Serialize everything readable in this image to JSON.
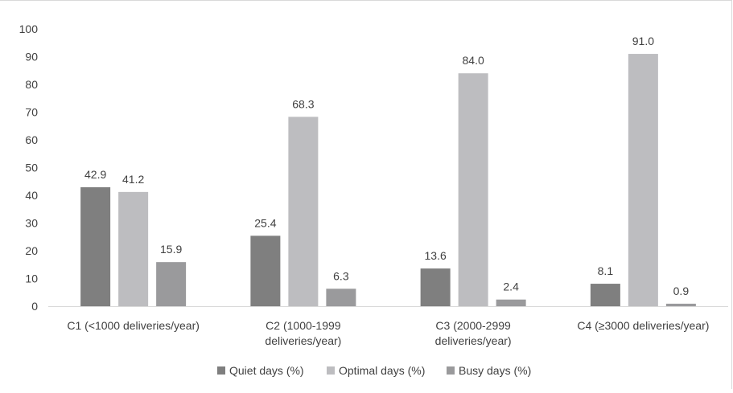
{
  "chart_data": {
    "type": "bar",
    "title": "",
    "xlabel": "",
    "ylabel": "",
    "ylim": [
      0,
      100
    ],
    "yticks": [
      "0",
      "10",
      "20",
      "30",
      "40",
      "50",
      "60",
      "70",
      "80",
      "90",
      "100"
    ],
    "categories": [
      [
        "C1 (<1000 deliveries/year)"
      ],
      [
        "C2 (1000-1999",
        "deliveries/year)"
      ],
      [
        "C3 (2000-2999",
        "deliveries/year)"
      ],
      [
        "C4 (≥3000 deliveries/year)"
      ]
    ],
    "series": [
      {
        "name": "Quiet days (%)",
        "color": "#7f7f7f",
        "values": [
          42.9,
          25.4,
          13.6,
          8.1
        ],
        "labels": [
          "42.9",
          "25.4",
          "13.6",
          "8.1"
        ]
      },
      {
        "name": "Optimal days (%)",
        "color": "#bdbdc0",
        "values": [
          41.2,
          68.3,
          84.0,
          91.0
        ],
        "labels": [
          "41.2",
          "68.3",
          "84.0",
          "91.0"
        ]
      },
      {
        "name": "Busy days (%)",
        "color": "#9a9a9c",
        "values": [
          15.9,
          6.3,
          2.4,
          0.9
        ],
        "labels": [
          "15.9",
          "6.3",
          "2.4",
          "0.9"
        ]
      }
    ],
    "grid": false,
    "legend_position": "bottom"
  }
}
